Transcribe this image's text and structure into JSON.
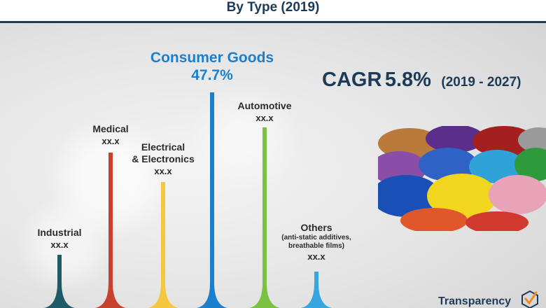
{
  "title": "By Type (2019)",
  "cagr": {
    "prefix": "CAGR",
    "value": "5.8%",
    "period": "(2019 - 2027)"
  },
  "logo_text": "Transparency",
  "chart_data": {
    "type": "bar",
    "title": "By Type (2019)",
    "categories": [
      "Industrial",
      "Medical",
      "Electrical\n& Electronics",
      "Consumer Goods",
      "Automotive",
      "Others"
    ],
    "labels": [
      {
        "name": "Industrial",
        "value": "xx.x"
      },
      {
        "name": "Medical",
        "value": "xx.x"
      },
      {
        "name_line1": "Electrical",
        "name_line2": "& Electronics",
        "value": "xx.x"
      },
      {
        "name": "Consumer Goods",
        "value": "47.7%"
      },
      {
        "name": "Automotive",
        "value": "xx.x"
      },
      {
        "name": "Others",
        "note_line1": "(anti-static additives,",
        "note_line2": "breathable films)",
        "value": "xx.x"
      }
    ],
    "values": [
      null,
      null,
      null,
      47.7,
      null,
      null
    ],
    "unit": "%",
    "colors": [
      "#1e5b67",
      "#c8412c",
      "#f5c63f",
      "#1b7fd0",
      "#7bc142",
      "#35a6e0"
    ],
    "highlight_index": 3,
    "grid": false,
    "legend": "none"
  }
}
